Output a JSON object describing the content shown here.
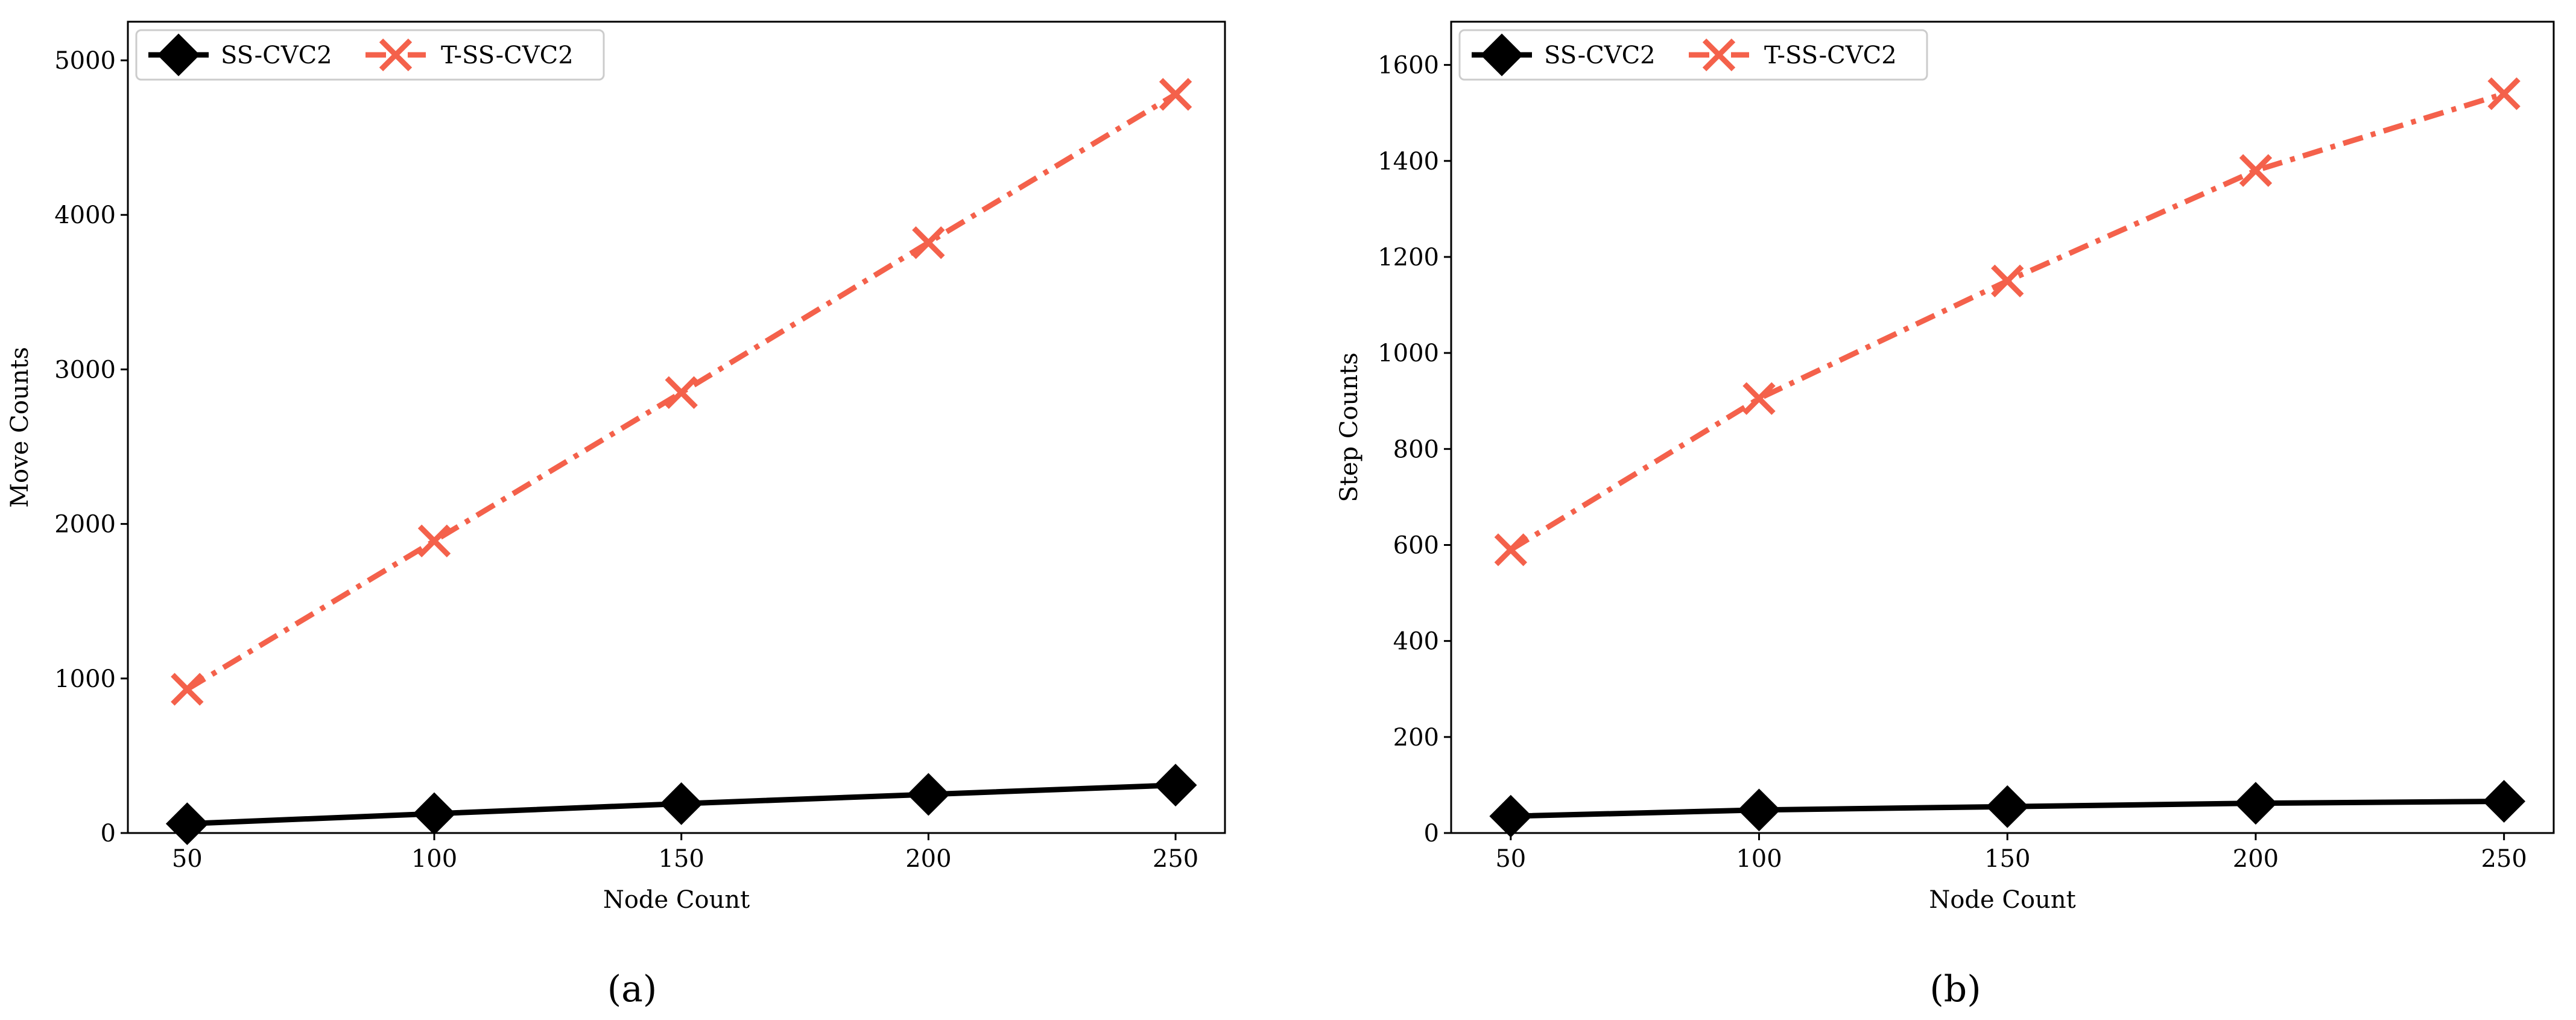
{
  "colors": {
    "ss": "#000000",
    "tss": "#f4614b",
    "axes": "#000000",
    "legend_frame": "#cccccc"
  },
  "chart_data": [
    {
      "type": "line",
      "caption": "(a)",
      "xlabel": "Node Count",
      "ylabel": "Move Counts",
      "x": [
        50,
        100,
        150,
        200,
        250
      ],
      "x_ticks": [
        "50",
        "100",
        "150",
        "200",
        "250"
      ],
      "xlim": [
        38,
        260
      ],
      "ylim": [
        0,
        5250
      ],
      "y_ticks": [
        "0",
        "1000",
        "2000",
        "3000",
        "4000",
        "5000"
      ],
      "grid": false,
      "legend_position": "top-left",
      "series": [
        {
          "name": "SS-CVC2",
          "marker": "diamond",
          "line": "solid",
          "values": [
            60,
            125,
            190,
            250,
            310
          ]
        },
        {
          "name": "T-SS-CVC2",
          "marker": "x",
          "line": "dash-dot",
          "values": [
            930,
            1890,
            2850,
            3820,
            4780
          ]
        }
      ]
    },
    {
      "type": "line",
      "caption": "(b)",
      "xlabel": "Node Count",
      "ylabel": "Step Counts",
      "x": [
        50,
        100,
        150,
        200,
        250
      ],
      "x_ticks": [
        "50",
        "100",
        "150",
        "200",
        "250"
      ],
      "xlim": [
        38,
        260
      ],
      "ylim": [
        0,
        1690
      ],
      "y_ticks": [
        "0",
        "200",
        "400",
        "600",
        "800",
        "1000",
        "1200",
        "1400",
        "1600"
      ],
      "grid": false,
      "legend_position": "top-left",
      "series": [
        {
          "name": "SS-CVC2",
          "marker": "diamond",
          "line": "solid",
          "values": [
            35,
            48,
            55,
            62,
            66
          ]
        },
        {
          "name": "T-SS-CVC2",
          "marker": "x",
          "line": "dash-dot",
          "values": [
            590,
            905,
            1150,
            1380,
            1540
          ]
        }
      ]
    }
  ]
}
